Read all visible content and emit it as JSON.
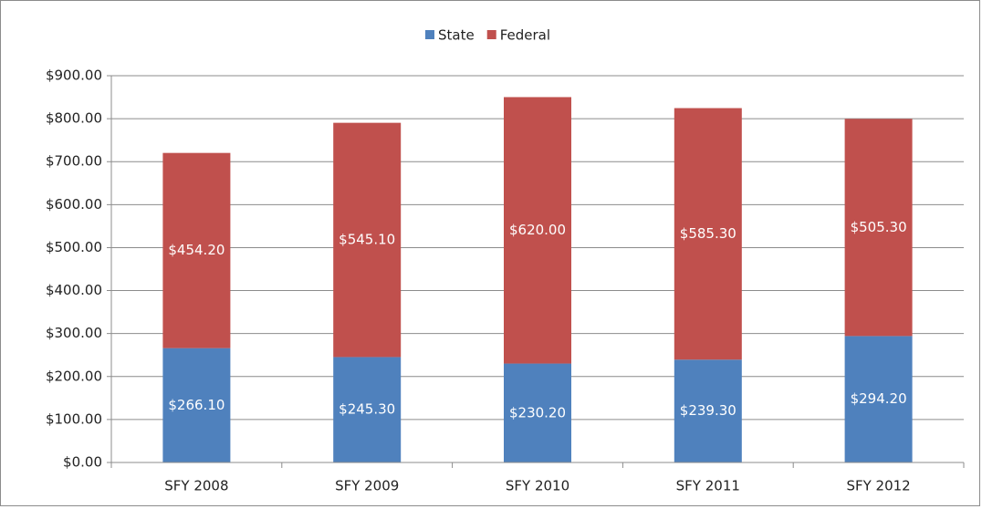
{
  "chart_data": {
    "type": "stacked-bar",
    "categories": [
      "SFY 2008",
      "SFY 2009",
      "SFY 2010",
      "SFY 2011",
      "SFY 2012"
    ],
    "series": [
      {
        "name": "State",
        "color": "#4f81bd",
        "values": [
          266.1,
          245.3,
          230.2,
          239.3,
          294.2
        ],
        "value_labels": [
          "$266.10",
          "$245.30",
          "$230.20",
          "$239.30",
          "$294.20"
        ]
      },
      {
        "name": "Federal",
        "color": "#c0504d",
        "values": [
          454.2,
          545.1,
          620.0,
          585.3,
          505.3
        ],
        "value_labels": [
          "$454.20",
          "$545.10",
          "$620.00",
          "$585.30",
          "$505.30"
        ]
      }
    ],
    "ylim": [
      0,
      900
    ],
    "yticks": [
      {
        "value": 0,
        "label": "$0.00"
      },
      {
        "value": 100,
        "label": "$100.00"
      },
      {
        "value": 200,
        "label": "$200.00"
      },
      {
        "value": 300,
        "label": "$300.00"
      },
      {
        "value": 400,
        "label": "$400.00"
      },
      {
        "value": 500,
        "label": "$500.00"
      },
      {
        "value": 600,
        "label": "$600.00"
      },
      {
        "value": 700,
        "label": "$700.00"
      },
      {
        "value": 800,
        "label": "$800.00"
      },
      {
        "value": 900,
        "label": "$900.00"
      }
    ],
    "grid": true,
    "legend": "top"
  }
}
